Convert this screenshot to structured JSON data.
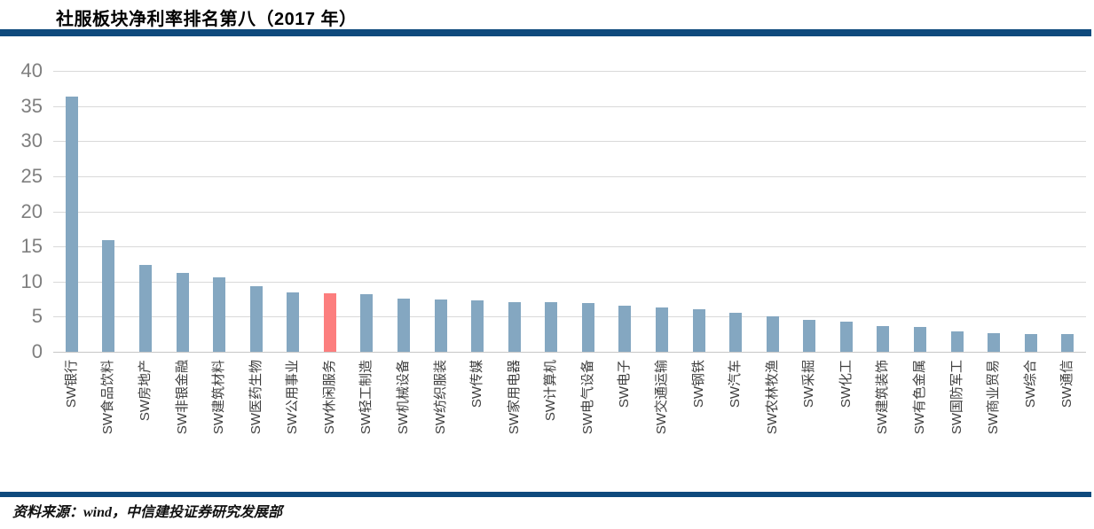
{
  "title": "社服板块净利率排名第八（2017 年）",
  "source": "资料来源：wind，中信建投证券研究发展部",
  "colors": {
    "accent_rule": "#0F4A7D",
    "bar": "#84A7C1",
    "bar_highlight": "#FC7E7E",
    "gridline": "#D9D9D9",
    "y_label": "#7F7F7F",
    "x_label": "#3F3F3F"
  },
  "chart_data": {
    "type": "bar",
    "title": "社服板块净利率排名第八（2017 年）",
    "categories": [
      "SW银行",
      "SW食品饮料",
      "SW房地产",
      "SW非银金融",
      "SW建筑材料",
      "SW医药生物",
      "SW公用事业",
      "SW休闲服务",
      "SW轻工制造",
      "SW机械设备",
      "SW纺织服装",
      "SW传媒",
      "SW家用电器",
      "SW计算机",
      "SW电气设备",
      "SW电子",
      "SW交通运输",
      "SW钢铁",
      "SW汽车",
      "SW农林牧渔",
      "SW采掘",
      "SW化工",
      "SW建筑装饰",
      "SW有色金属",
      "SW国防军工",
      "SW商业贸易",
      "SW综合",
      "SW通信"
    ],
    "values": [
      36.4,
      15.9,
      12.4,
      11.2,
      10.6,
      9.4,
      8.5,
      8.3,
      8.2,
      7.6,
      7.4,
      7.3,
      7.1,
      7.1,
      7.0,
      6.5,
      6.3,
      6.0,
      5.5,
      5.1,
      4.6,
      4.3,
      3.6,
      3.5,
      2.9,
      2.7,
      2.5,
      2.5
    ],
    "highlight_index": 7,
    "highlighted_category": "SW休闲服务",
    "xlabel": "",
    "ylabel": "",
    "ylim": [
      0,
      40
    ],
    "ytick_step": 5,
    "yticks": [
      0,
      5,
      10,
      15,
      20,
      25,
      30,
      35,
      40
    ],
    "grid": true,
    "legend": false,
    "x_labels_rotation_deg": -90
  }
}
